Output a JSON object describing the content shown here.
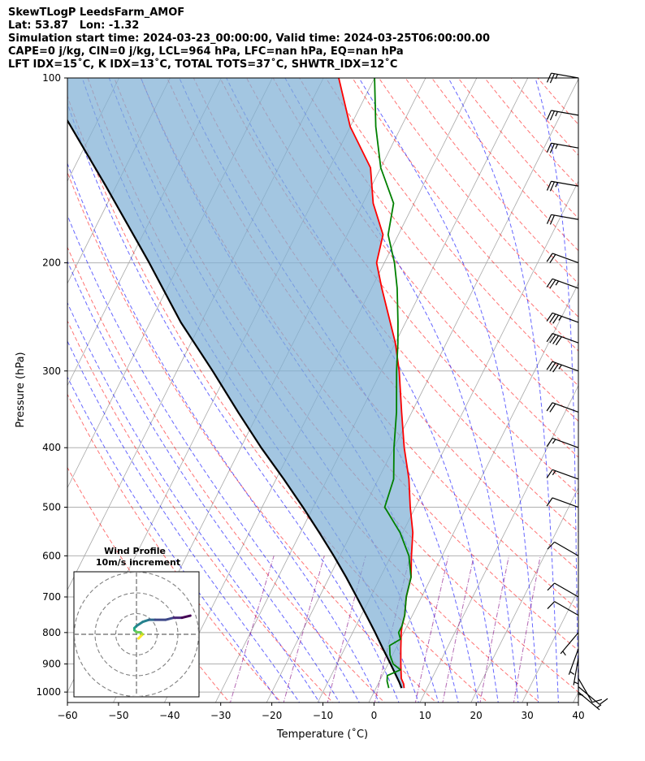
{
  "header": {
    "line1": "SkewTLogP LeedsFarm_AMOF",
    "line2": "Lat: 53.87   Lon: -1.32",
    "line3": "Simulation start time: 2024-03-23_00:00:00, Valid time: 2024-03-25T06:00:00.00",
    "line4": "CAPE=0 j/kg, CIN=0 j/kg, LCL=964 hPa, LFC=nan hPa, EQ=nan hPa",
    "line5": "LFT IDX=15˚C, K IDX=13˚C, TOTAL TOTS=37˚C, SHWTR_IDX=12˚C"
  },
  "colors": {
    "temperature": "#ff0000",
    "dewpoint": "#008000",
    "parcel": "#000000",
    "cin_fill": "#7fb0d5",
    "dry_adiabat": "#ff0000",
    "moist_adiabat": "#0000ff",
    "isotherm": "#808080",
    "mixing_ratio": "#800080"
  },
  "chart_data": [
    {
      "type": "line",
      "subtype": "skew-t log-p",
      "xlabel": "Temperature (˚C)",
      "ylabel": "Pressure (hPa)",
      "xlim": [
        -60,
        40
      ],
      "ylim": [
        1040,
        100
      ],
      "yscale": "log",
      "xticks": [
        "−60",
        "−50",
        "−40",
        "−30",
        "−20",
        "−10",
        "0",
        "10",
        "20",
        "30",
        "40"
      ],
      "yticks": [
        "100",
        "200",
        "300",
        "400",
        "500",
        "600",
        "700",
        "800",
        "900",
        "1000"
      ],
      "grid": true,
      "series": [
        {
          "role": "temperature",
          "p": [
            985,
            970,
            950,
            900,
            850,
            800,
            780,
            750,
            700,
            650,
            600,
            550,
            500,
            450,
            400,
            350,
            300,
            270,
            250,
            220,
            200,
            180,
            160,
            140,
            120,
            100
          ],
          "t": [
            5.5,
            5,
            4,
            2.5,
            1,
            -0.5,
            -1,
            -1.5,
            -3,
            -4,
            -6,
            -8,
            -11,
            -14,
            -18,
            -22,
            -26.5,
            -30,
            -33,
            -38,
            -41.5,
            -43,
            -48,
            -52,
            -60,
            -67
          ]
        },
        {
          "role": "dewpoint",
          "p": [
            985,
            960,
            940,
            920,
            900,
            870,
            840,
            820,
            800,
            780,
            750,
            700,
            650,
            600,
            550,
            500,
            450,
            400,
            350,
            300,
            270,
            250,
            220,
            200,
            180,
            160,
            140,
            120,
            100
          ],
          "t": [
            2.5,
            1.5,
            1,
            3,
            1,
            -0.5,
            -1.5,
            0,
            -1,
            -1,
            -1.5,
            -3,
            -4,
            -6.5,
            -10.5,
            -16,
            -17,
            -20,
            -23,
            -27,
            -29.5,
            -31.5,
            -35,
            -38,
            -42,
            -44,
            -50,
            -55,
            -60
          ]
        },
        {
          "role": "parcel",
          "p": [
            985,
            964,
            900,
            850,
            800,
            750,
            700,
            650,
            600,
            550,
            500,
            450,
            400,
            350,
            300,
            250,
            200,
            150,
            100
          ],
          "t": [
            5,
            4,
            0.5,
            -2.5,
            -5.6,
            -9,
            -12.7,
            -16.7,
            -21.2,
            -26.3,
            -32,
            -38.5,
            -46,
            -54,
            -63,
            -74,
            -86,
            -102,
            -125
          ]
        }
      ],
      "wind_barbs": [
        {
          "p": 1000,
          "speed": 5,
          "dir": 130
        },
        {
          "p": 980,
          "speed": 10,
          "dir": 130
        },
        {
          "p": 950,
          "speed": 10,
          "dir": 150
        },
        {
          "p": 920,
          "speed": 5,
          "dir": 180
        },
        {
          "p": 880,
          "speed": 5,
          "dir": 190
        },
        {
          "p": 850,
          "speed": 5,
          "dir": 200
        },
        {
          "p": 800,
          "speed": 5,
          "dir": 220
        },
        {
          "p": 750,
          "speed": 10,
          "dir": 300
        },
        {
          "p": 700,
          "speed": 10,
          "dir": 300
        },
        {
          "p": 600,
          "speed": 10,
          "dir": 300
        },
        {
          "p": 500,
          "speed": 10,
          "dir": 290
        },
        {
          "p": 450,
          "speed": 15,
          "dir": 290
        },
        {
          "p": 400,
          "speed": 15,
          "dir": 290
        },
        {
          "p": 350,
          "speed": 20,
          "dir": 290
        },
        {
          "p": 300,
          "speed": 35,
          "dir": 290
        },
        {
          "p": 270,
          "speed": 40,
          "dir": 290
        },
        {
          "p": 250,
          "speed": 35,
          "dir": 290
        },
        {
          "p": 220,
          "speed": 25,
          "dir": 290
        },
        {
          "p": 200,
          "speed": 20,
          "dir": 290
        },
        {
          "p": 170,
          "speed": 20,
          "dir": 280
        },
        {
          "p": 150,
          "speed": 25,
          "dir": 280
        },
        {
          "p": 130,
          "speed": 25,
          "dir": 280
        },
        {
          "p": 115,
          "speed": 25,
          "dir": 280
        },
        {
          "p": 100,
          "speed": 25,
          "dir": 280
        }
      ]
    },
    {
      "type": "scatter",
      "subtype": "hodograph",
      "title": "Wind Profile",
      "subtitle": "10m/s increment",
      "ring_increment": 10,
      "rings": [
        10,
        20,
        30
      ],
      "u": [
        1,
        2,
        3,
        2,
        0,
        -1,
        -1,
        0,
        3,
        6,
        9,
        14,
        18,
        22,
        26
      ],
      "v": [
        -2,
        -1,
        0,
        1,
        1,
        2,
        3,
        4,
        6,
        7,
        7,
        7,
        8,
        8,
        9
      ],
      "colormap": "viridis"
    }
  ]
}
